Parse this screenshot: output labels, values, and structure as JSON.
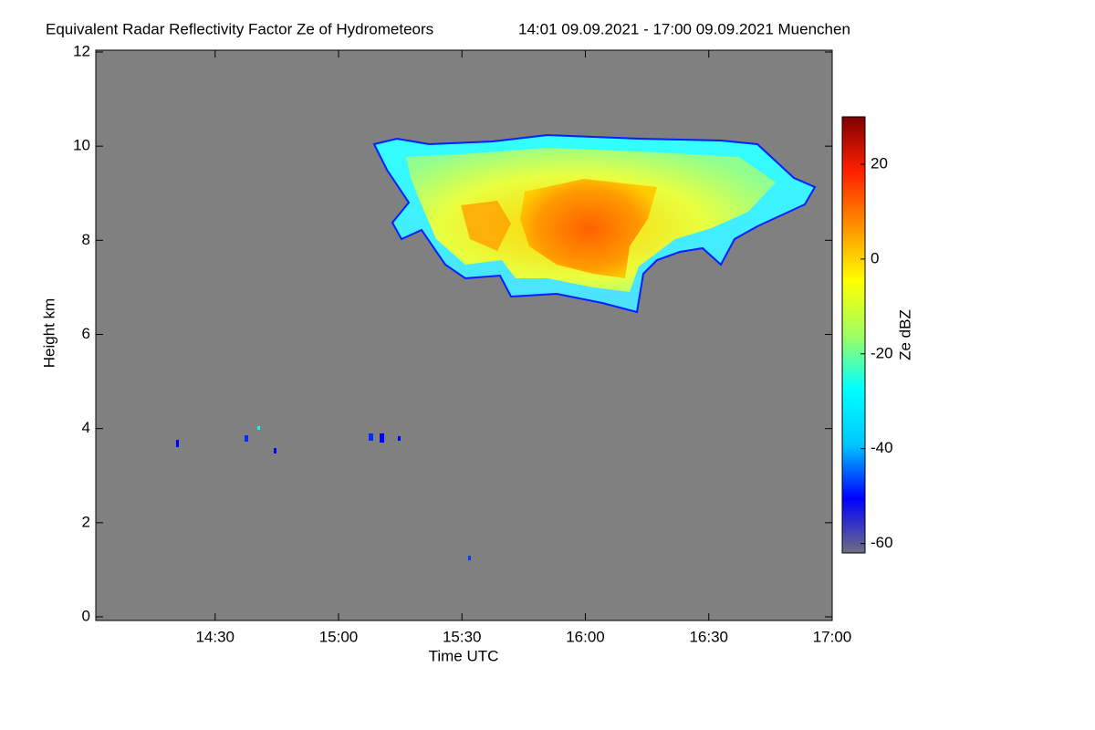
{
  "chart_data": {
    "type": "heatmap",
    "title": "Equivalent Radar Reflectivity Factor Ze of Hydrometeors",
    "subtitle": "14:01 09.09.2021 - 17:00 09.09.2021 Muenchen",
    "x_label": "Time UTC",
    "y_label": "Height km",
    "xlim": [
      "14:01",
      "17:00"
    ],
    "xticks": [
      "14:30",
      "15:00",
      "15:30",
      "16:00",
      "16:30",
      "17:00"
    ],
    "ylim": [
      0,
      12
    ],
    "yticks": [
      0,
      2,
      4,
      6,
      8,
      10,
      12
    ],
    "background": "#808080",
    "colorbar": {
      "label": "Ze dBZ",
      "zlim": [
        -62,
        30
      ],
      "zticks": [
        -60,
        -40,
        -20,
        0,
        20
      ],
      "colormap": [
        "#6e6e82",
        "#0000ff",
        "#00c8ff",
        "#00ffff",
        "#a0ff60",
        "#ffff00",
        "#ff9000",
        "#ff2000",
        "#800000"
      ]
    }
  }
}
